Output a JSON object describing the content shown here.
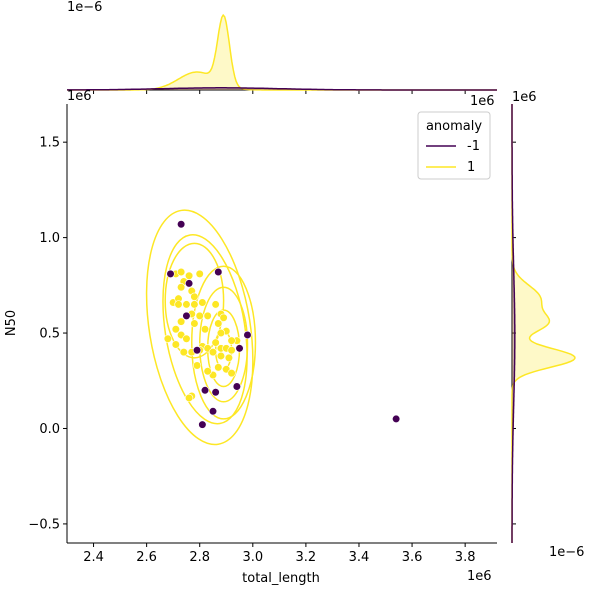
{
  "chart_data": {
    "type": "scatter",
    "subtype": "jointplot (scatter + kde contours, marginal kde plots)",
    "xlabel": "total_length",
    "ylabel": "N50",
    "x_offset_text": "1e6",
    "y_offset_text": "1e6",
    "top_marginal_offset_text": "1e−6",
    "right_marginal_offset_text": "1e−6",
    "xlim": [
      2.3,
      3.92
    ],
    "ylim": [
      -0.6,
      1.7
    ],
    "x_ticks": [
      "2.4",
      "2.6",
      "2.8",
      "3.0",
      "3.2",
      "3.4",
      "3.6",
      "3.8"
    ],
    "y_ticks": [
      "−0.5",
      "0.0",
      "0.5",
      "1.0",
      "1.5"
    ],
    "grid": false,
    "legend": {
      "title": "anomaly",
      "placement": "top-right",
      "entries": [
        {
          "label": "-1",
          "color": "#440154"
        },
        {
          "label": "1",
          "color": "#fde725"
        }
      ]
    },
    "series": [
      {
        "name": "-1",
        "color": "#440154",
        "points": [
          [
            2.69,
            0.81
          ],
          [
            2.73,
            1.07
          ],
          [
            2.76,
            0.76
          ],
          [
            2.75,
            0.59
          ],
          [
            2.87,
            0.82
          ],
          [
            2.79,
            0.41
          ],
          [
            2.82,
            0.2
          ],
          [
            2.86,
            0.19
          ],
          [
            2.85,
            0.09
          ],
          [
            2.81,
            0.02
          ],
          [
            2.94,
            0.22
          ],
          [
            2.95,
            0.42
          ],
          [
            2.98,
            0.49
          ],
          [
            3.54,
            0.05
          ]
        ]
      },
      {
        "name": "1",
        "color": "#fde725",
        "points": [
          [
            2.69,
            0.81
          ],
          [
            2.71,
            0.81
          ],
          [
            2.73,
            0.82
          ],
          [
            2.76,
            0.8
          ],
          [
            2.8,
            0.81
          ],
          [
            2.74,
            0.77
          ],
          [
            2.73,
            0.74
          ],
          [
            2.77,
            0.72
          ],
          [
            2.7,
            0.66
          ],
          [
            2.72,
            0.68
          ],
          [
            2.72,
            0.65
          ],
          [
            2.75,
            0.65
          ],
          [
            2.78,
            0.69
          ],
          [
            2.81,
            0.66
          ],
          [
            2.78,
            0.65
          ],
          [
            2.77,
            0.6
          ],
          [
            2.8,
            0.59
          ],
          [
            2.83,
            0.59
          ],
          [
            2.86,
            0.65
          ],
          [
            2.88,
            0.6
          ],
          [
            2.89,
            0.58
          ],
          [
            2.87,
            0.55
          ],
          [
            2.9,
            0.51
          ],
          [
            2.88,
            0.5
          ],
          [
            2.82,
            0.52
          ],
          [
            2.78,
            0.55
          ],
          [
            2.73,
            0.56
          ],
          [
            2.71,
            0.52
          ],
          [
            2.68,
            0.47
          ],
          [
            2.73,
            0.49
          ],
          [
            2.75,
            0.47
          ],
          [
            2.71,
            0.44
          ],
          [
            2.74,
            0.4
          ],
          [
            2.77,
            0.4
          ],
          [
            2.81,
            0.43
          ],
          [
            2.8,
            0.41
          ],
          [
            2.83,
            0.42
          ],
          [
            2.85,
            0.4
          ],
          [
            2.88,
            0.42
          ],
          [
            2.9,
            0.42
          ],
          [
            2.92,
            0.41
          ],
          [
            2.88,
            0.38
          ],
          [
            2.91,
            0.37
          ],
          [
            2.87,
            0.32
          ],
          [
            2.9,
            0.31
          ],
          [
            2.92,
            0.29
          ],
          [
            2.85,
            0.28
          ],
          [
            2.83,
            0.3
          ],
          [
            2.79,
            0.33
          ],
          [
            2.77,
            0.17
          ],
          [
            2.76,
            0.16
          ],
          [
            2.86,
            0.45
          ],
          [
            2.94,
            0.46
          ],
          [
            2.92,
            0.46
          ]
        ]
      }
    ],
    "kde_contour_levels": {
      "series": "1",
      "color": "#fde725",
      "levels": [
        {
          "center": [
            2.8,
            0.53
          ],
          "spread": [
            0.19,
            0.62
          ],
          "tilt": -0.9
        },
        {
          "center": [
            2.82,
            0.52
          ],
          "spread": [
            0.15,
            0.5
          ],
          "tilt": -0.9
        },
        {
          "center": [
            2.78,
            0.67
          ],
          "spread": [
            0.11,
            0.3
          ],
          "tilt": 0.0
        },
        {
          "center": [
            2.89,
            0.45
          ],
          "spread": [
            0.12,
            0.4
          ],
          "tilt": 0.0
        },
        {
          "center": [
            2.89,
            0.44
          ],
          "spread": [
            0.09,
            0.3
          ],
          "tilt": 0.0
        },
        {
          "center": [
            2.89,
            0.42
          ],
          "spread": [
            0.06,
            0.2
          ],
          "tilt": 0.0
        },
        {
          "center": [
            2.89,
            0.41
          ],
          "spread": [
            0.03,
            0.1
          ],
          "tilt": 0.0
        }
      ]
    },
    "marginal_x": {
      "series": [
        {
          "name": "1",
          "color": "#fde725",
          "components": [
            [
              2.79,
              0.07,
              0.25
            ],
            [
              2.89,
              0.022,
              0.95
            ]
          ]
        },
        {
          "name": "-1",
          "color": "#440154",
          "components": [
            [
              2.88,
              0.22,
              0.03
            ]
          ]
        }
      ]
    },
    "marginal_y": {
      "series": [
        {
          "name": "1",
          "color": "#fde725",
          "components": [
            [
              0.37,
              0.05,
              0.9
            ],
            [
              0.55,
              0.05,
              0.45
            ],
            [
              0.68,
              0.07,
              0.4
            ]
          ]
        },
        {
          "name": "-1",
          "color": "#440154",
          "components": [
            [
              0.48,
              0.35,
              0.04
            ]
          ]
        }
      ]
    }
  }
}
